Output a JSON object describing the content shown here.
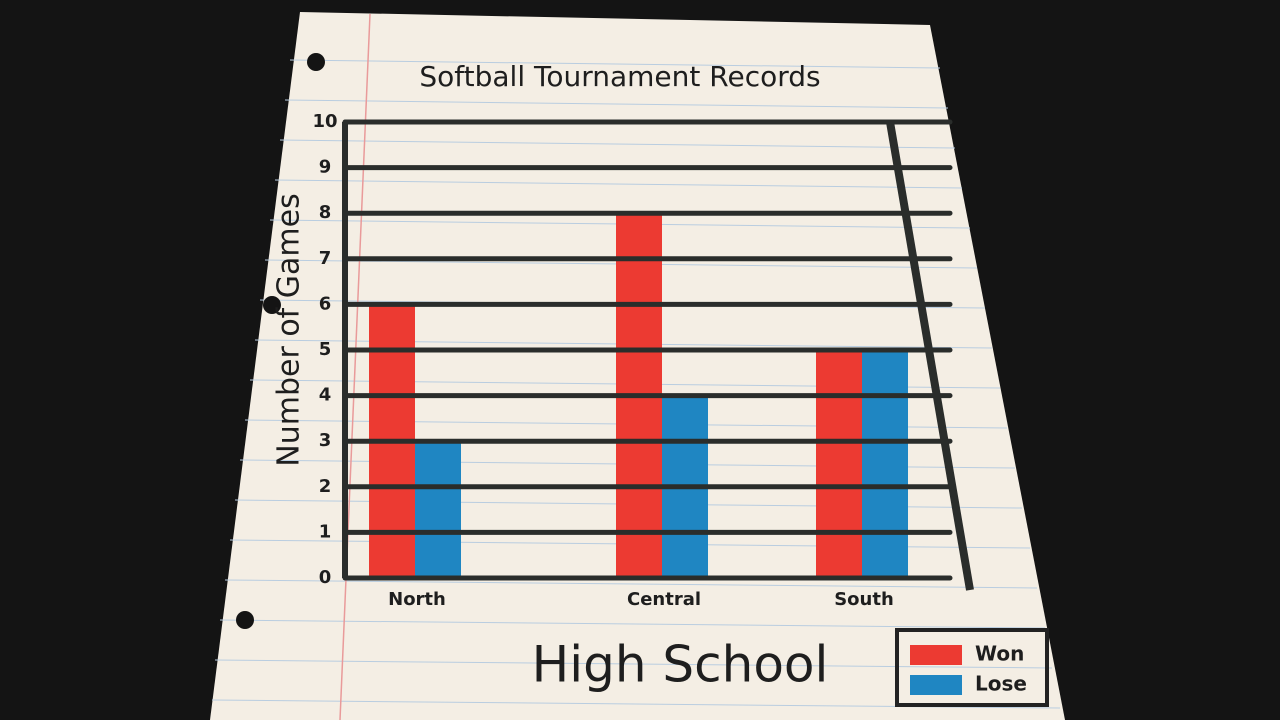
{
  "chart_data": {
    "type": "bar",
    "title": "Softball Tournament Records",
    "x_label": "High School",
    "y_label": "Number of Games",
    "categories": [
      "North",
      "Central",
      "South"
    ],
    "series": [
      {
        "name": "Won",
        "color": "#ec3a32",
        "values": [
          6,
          8,
          5
        ]
      },
      {
        "name": "Lose",
        "color": "#1f86c2",
        "values": [
          3,
          4,
          5
        ]
      }
    ],
    "ylim": [
      0,
      10
    ],
    "yticks": [
      0,
      1,
      2,
      3,
      4,
      5,
      6,
      7,
      8,
      9,
      10
    ],
    "grid": true,
    "legend": "lower right"
  }
}
